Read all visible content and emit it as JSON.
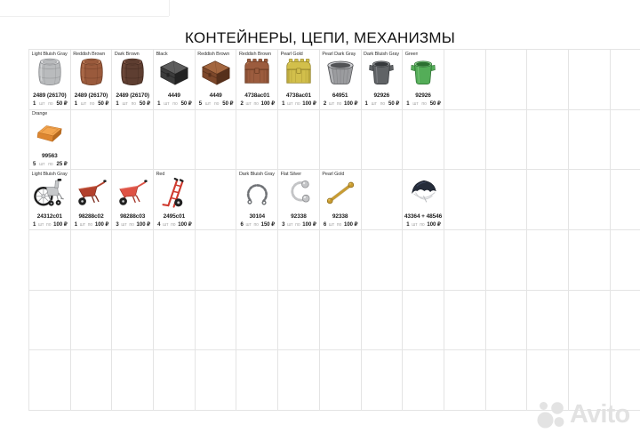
{
  "title": "КОНТЕЙНЕРЫ, ЦЕПИ, МЕХАНИЗМЫ",
  "labels": {
    "unit": "шт",
    "per": "по"
  },
  "watermark": {
    "brand": "Avito"
  },
  "grid": {
    "columns": 15,
    "rows": 6,
    "line_color": "#e4e4e4"
  },
  "items": [
    {
      "row": 0,
      "col": 0,
      "label": "Light Bluish Gray",
      "part": "2489 (26170)",
      "qty": "1",
      "price": "50 ₽",
      "icon": "barrel",
      "colors": {
        "fill": "#b9bbbd",
        "dark": "#87898c",
        "light": "#dfe0e2"
      }
    },
    {
      "row": 0,
      "col": 1,
      "label": "Reddish Brown",
      "part": "2489 (26170)",
      "qty": "1",
      "price": "50 ₽",
      "icon": "barrel",
      "colors": {
        "fill": "#9a5a3c",
        "dark": "#6b3a23",
        "light": "#c3815c"
      }
    },
    {
      "row": 0,
      "col": 2,
      "label": "Dark Brown",
      "part": "2489 (26170)",
      "qty": "1",
      "price": "50 ₽",
      "icon": "barrel",
      "colors": {
        "fill": "#5e3e31",
        "dark": "#3e261c",
        "light": "#83594a"
      }
    },
    {
      "row": 0,
      "col": 3,
      "label": "Black",
      "part": "4449",
      "qty": "1",
      "price": "50 ₽",
      "icon": "chest-closed",
      "colors": {
        "fill": "#3c3c3c",
        "dark": "#232323",
        "light": "#5d5d5d"
      }
    },
    {
      "row": 0,
      "col": 4,
      "label": "Reddish Brown",
      "part": "4449",
      "qty": "5",
      "price": "50 ₽",
      "icon": "chest-closed",
      "colors": {
        "fill": "#7d482b",
        "dark": "#56301b",
        "light": "#a3663f"
      }
    },
    {
      "row": 0,
      "col": 5,
      "label": "Reddish Brown",
      "part": "4738ac01",
      "qty": "2",
      "price": "100 ₽",
      "icon": "chest-lid",
      "colors": {
        "fill": "#9c5c3e",
        "dark": "#693a22",
        "light": "#bd8058"
      }
    },
    {
      "row": 0,
      "col": 6,
      "label": "Pearl Gold",
      "part": "4738ac01",
      "qty": "1",
      "price": "100 ₽",
      "icon": "chest-lid",
      "colors": {
        "fill": "#d2bf4b",
        "dark": "#94832a",
        "light": "#e7da75"
      }
    },
    {
      "row": 0,
      "col": 7,
      "label": "Pearl Dark Gray",
      "part": "64951",
      "qty": "2",
      "price": "100 ₽",
      "icon": "bucket",
      "colors": {
        "fill": "#9b9c9f",
        "dark": "#525356",
        "light": "#cfd0d3"
      }
    },
    {
      "row": 0,
      "col": 8,
      "label": "Dark Bluish Gray",
      "part": "92926",
      "qty": "1",
      "price": "50 ₽",
      "icon": "container",
      "colors": {
        "fill": "#606366",
        "dark": "#36393c",
        "light": "#939699"
      }
    },
    {
      "row": 0,
      "col": 9,
      "label": "Green",
      "part": "92926",
      "qty": "1",
      "price": "50 ₽",
      "icon": "container",
      "colors": {
        "fill": "#54ad58",
        "dark": "#2c7031",
        "light": "#8ccf8e"
      }
    },
    {
      "row": 1,
      "col": 0,
      "label": "Orange",
      "part": "99563",
      "qty": "5",
      "price": "25 ₽",
      "icon": "ingot",
      "colors": {
        "fill": "#dd8630",
        "dark": "#b76a1f",
        "light": "#f3a54f"
      }
    },
    {
      "row": 2,
      "col": 0,
      "label": "Light Bluish Gray",
      "part": "24312c01",
      "qty": "1",
      "price": "100 ₽",
      "icon": "wheelchair",
      "colors": {
        "fill": "#c6c8ca",
        "dark": "#8e9093",
        "light": "#e8e9ea"
      }
    },
    {
      "row": 2,
      "col": 1,
      "label": "",
      "part": "98288c02",
      "qty": "1",
      "price": "100 ₽",
      "icon": "wheelbarrow",
      "colors": {
        "fill": "#b2402c",
        "dark": "#7c2a1c",
        "light": "#d06a50"
      }
    },
    {
      "row": 2,
      "col": 2,
      "label": "",
      "part": "98288c03",
      "qty": "3",
      "price": "100 ₽",
      "icon": "wheelbarrow",
      "colors": {
        "fill": "#de5245",
        "dark": "#a23327",
        "light": "#ef8176"
      }
    },
    {
      "row": 2,
      "col": 3,
      "label": "Red",
      "part": "2495c01",
      "qty": "4",
      "price": "100 ₽",
      "icon": "handtruck",
      "colors": {
        "fill": "#cf3a2e",
        "dark": "#8f2318",
        "light": "#e9705f"
      }
    },
    {
      "row": 2,
      "col": 5,
      "label": "Dark Bluish Gray",
      "part": "30104",
      "qty": "6",
      "price": "150 ₽",
      "icon": "chain-open",
      "colors": {
        "fill": "#6e7175",
        "dark": "#45484c",
        "light": "#a5a8ac"
      }
    },
    {
      "row": 2,
      "col": 6,
      "label": "Flat Silver",
      "part": "92338",
      "qty": "3",
      "price": "100 ₽",
      "icon": "chain-ball",
      "colors": {
        "fill": "#c4c5c7",
        "dark": "#8b8c8f",
        "light": "#eceded"
      }
    },
    {
      "row": 2,
      "col": 7,
      "label": "Pearl Gold",
      "part": "92338",
      "qty": "6",
      "price": "100 ₽",
      "icon": "chain-gold",
      "colors": {
        "fill": "#c99c31",
        "dark": "#8f6c1b",
        "light": "#e8c45c"
      }
    },
    {
      "row": 2,
      "col": 9,
      "label": "",
      "part": "43364 + 48546",
      "qty": "1",
      "price": "100 ₽",
      "icon": "umbrella",
      "colors": {
        "fill": "#252c3a",
        "dark": "#121722",
        "light": "#c9cbce"
      }
    }
  ]
}
